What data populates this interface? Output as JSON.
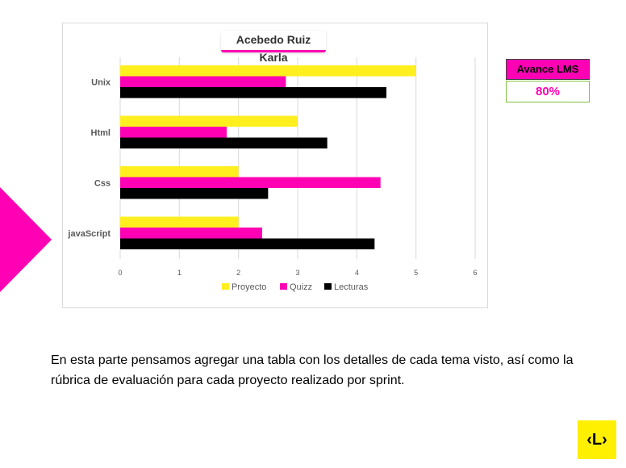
{
  "chart_data": {
    "type": "bar",
    "orientation": "horizontal",
    "title": "Acebedo Ruiz Karla",
    "categories": [
      "Unix",
      "Html",
      "Css",
      "javaScript"
    ],
    "series": [
      {
        "name": "Proyecto",
        "color": "#ffef1e",
        "values": [
          5,
          3,
          2,
          2
        ]
      },
      {
        "name": "Quizz",
        "color": "#ff00b4",
        "values": [
          2.8,
          1.8,
          4.4,
          2.4
        ]
      },
      {
        "name": "Lecturas",
        "color": "#000000",
        "values": [
          4.5,
          3.5,
          2.5,
          4.3
        ]
      }
    ],
    "xlim": [
      0,
      6
    ],
    "xticks": [
      "0",
      "1",
      "2",
      "3",
      "4",
      "5",
      "6"
    ],
    "grid": true,
    "legend": "bottom"
  },
  "lms": {
    "label": "Avance  LMS",
    "value": "80%"
  },
  "body_text": "En esta parte pensamos agregar una tabla con los detalles de cada tema visto, así como  la rúbrica de evaluación para cada proyecto realizado por sprint.",
  "logo": {
    "text": "‹L›"
  },
  "colors": {
    "accent": "#ff00b4",
    "yellow": "#ffef00"
  }
}
